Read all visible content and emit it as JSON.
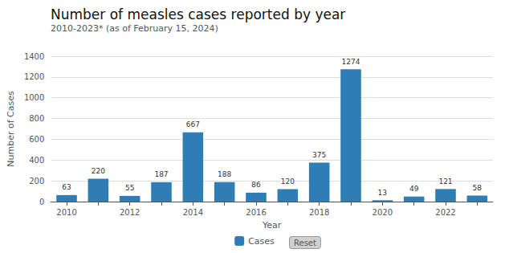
{
  "chart_data": {
    "type": "bar",
    "title": "Number of measles cases reported by year",
    "subtitle": "2010-2023* (as of February 15, 2024)",
    "xlabel": "Year",
    "ylabel": "Number of Cases",
    "categories": [
      "2010",
      null,
      "2012",
      null,
      "2014",
      null,
      "2016",
      null,
      "2018",
      null,
      "2020",
      null,
      "2022",
      null
    ],
    "series": [
      {
        "name": "Cases",
        "color": "#2e7db5",
        "values": [
          63,
          220,
          55,
          187,
          667,
          188,
          86,
          120,
          375,
          1274,
          13,
          49,
          121,
          58
        ]
      }
    ],
    "ylim": [
      0,
      1400
    ],
    "yticks": [
      0,
      200,
      400,
      600,
      800,
      1000,
      1200,
      1400
    ],
    "grid": true,
    "data_labels": true,
    "legend": "bottom",
    "annotations": [
      "Reset"
    ]
  }
}
